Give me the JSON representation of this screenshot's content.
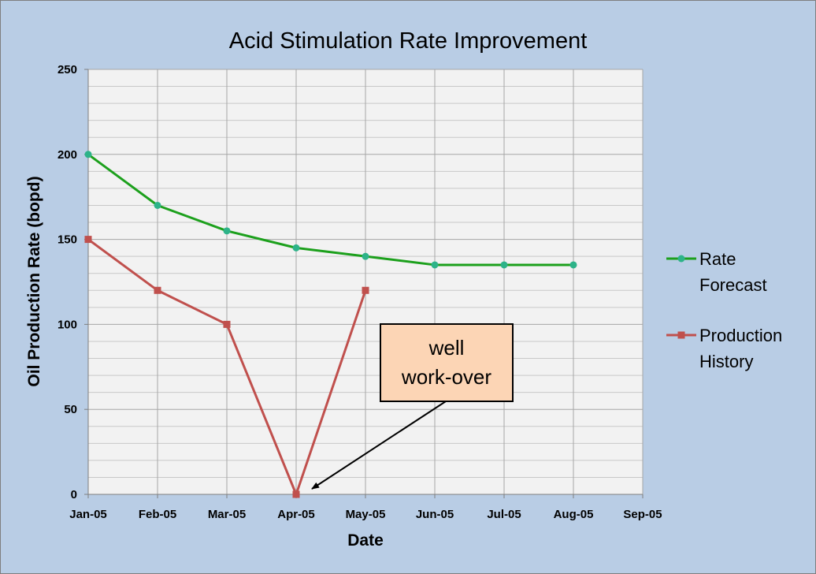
{
  "chart_data": {
    "type": "line",
    "title": "Acid Stimulation  Rate Improvement",
    "xlabel": "Date",
    "ylabel": "Oil Production  Rate (bopd)",
    "categories": [
      "Jan-05",
      "Feb-05",
      "Mar-05",
      "Apr-05",
      "May-05",
      "Jun-05",
      "Jul-05",
      "Aug-05",
      "Sep-05"
    ],
    "ylim": [
      0,
      250
    ],
    "y_major_ticks": [
      0,
      50,
      100,
      150,
      200,
      250
    ],
    "y_minor_step": 10,
    "grid": true,
    "legend_position": "right",
    "series": [
      {
        "name": "Rate Forecast",
        "legend_lines": [
          "Rate",
          "Forecast"
        ],
        "color": "#1ca01c",
        "marker": "circle",
        "marker_color": "#2db389",
        "values": [
          200,
          170,
          155,
          145,
          140,
          135,
          135,
          135,
          null
        ]
      },
      {
        "name": "Production History",
        "legend_lines": [
          "Production",
          "History"
        ],
        "color": "#c0504d",
        "marker": "square",
        "marker_color": "#c0504d",
        "values": [
          150,
          120,
          100,
          0,
          120,
          null,
          null,
          null,
          null
        ]
      }
    ],
    "annotations": [
      {
        "lines": [
          "well",
          "work-over"
        ],
        "points_to": {
          "category": "Apr-05",
          "value": 0
        },
        "fill": "#fcd5b5"
      }
    ]
  },
  "colors": {
    "background": "#b9cde5",
    "plot_area": "#f2f2f2",
    "grid": "#a6a6a6"
  }
}
